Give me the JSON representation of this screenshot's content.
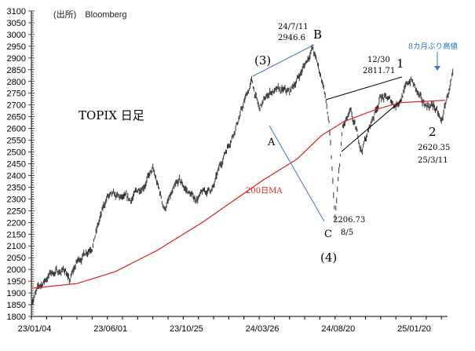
{
  "chart_data": {
    "type": "line",
    "title": "TOPIX 日足",
    "source": "(出所)　Bloomberg",
    "ylim": [
      1800,
      3100
    ],
    "yticks": [
      1800,
      1850,
      1900,
      1950,
      2000,
      2050,
      2100,
      2150,
      2200,
      2250,
      2300,
      2350,
      2400,
      2450,
      2500,
      2550,
      2600,
      2650,
      2700,
      2750,
      2800,
      2850,
      2900,
      2950,
      3000,
      3050,
      3100
    ],
    "xtick_labels": [
      "23/01/04",
      "23/06/01",
      "23/10/25",
      "24/03/26",
      "24/08/20",
      "25/01/20"
    ],
    "x_unit": "trading day index",
    "xlim": [
      0,
      546
    ],
    "series": [
      {
        "name": "TOPIX",
        "color": "#333333",
        "points": [
          [
            0,
            1870
          ],
          [
            10,
            1920
          ],
          [
            25,
            1985
          ],
          [
            45,
            2000
          ],
          [
            50,
            1945
          ],
          [
            60,
            2030
          ],
          [
            80,
            2110
          ],
          [
            90,
            2210
          ],
          [
            100,
            2310
          ],
          [
            130,
            2290
          ],
          [
            160,
            2420
          ],
          [
            175,
            2260
          ],
          [
            195,
            2370
          ],
          [
            215,
            2300
          ],
          [
            240,
            2350
          ],
          [
            255,
            2500
          ],
          [
            275,
            2660
          ],
          [
            290,
            2800
          ],
          [
            300,
            2680
          ],
          [
            315,
            2760
          ],
          [
            340,
            2750
          ],
          [
            360,
            2870
          ],
          [
            370,
            2946
          ],
          [
            385,
            2780
          ],
          [
            392,
            2620
          ],
          [
            400,
            2207
          ],
          [
            410,
            2600
          ],
          [
            420,
            2660
          ],
          [
            435,
            2510
          ],
          [
            460,
            2740
          ],
          [
            480,
            2700
          ],
          [
            500,
            2811
          ],
          [
            515,
            2700
          ],
          [
            530,
            2700
          ],
          [
            540,
            2620
          ],
          [
            548,
            2740
          ],
          [
            555,
            2810
          ]
        ]
      },
      {
        "name": "200日MA",
        "color": "#e02020",
        "points": [
          [
            0,
            1920
          ],
          [
            60,
            1940
          ],
          [
            110,
            1990
          ],
          [
            165,
            2080
          ],
          [
            225,
            2200
          ],
          [
            265,
            2290
          ],
          [
            305,
            2380
          ],
          [
            350,
            2470
          ],
          [
            382,
            2570
          ],
          [
            412,
            2630
          ],
          [
            453,
            2680
          ],
          [
            485,
            2710
          ],
          [
            545,
            2720
          ]
        ]
      }
    ],
    "annotations": {
      "ma_label": "200日MA",
      "peak_date": "24/7/11",
      "peak_value": "2946.6",
      "label_B": "B",
      "label_3": "(3)",
      "label_A": "A",
      "label_C": "C",
      "label_4": "(4)",
      "trough_value": "2206.73",
      "trough_date": "8/5",
      "high1_date": "12/30",
      "high1_value": "2811.71",
      "label_1": "1",
      "label_2": "2",
      "low2_value": "2620.35",
      "low2_date": "25/3/11",
      "recent_high": "8カ月ぶり高値"
    },
    "colors": {
      "price": "#333333",
      "ma": "#e02020",
      "trend_blue": "#4472c4",
      "note_blue": "#1f6fc0"
    }
  }
}
